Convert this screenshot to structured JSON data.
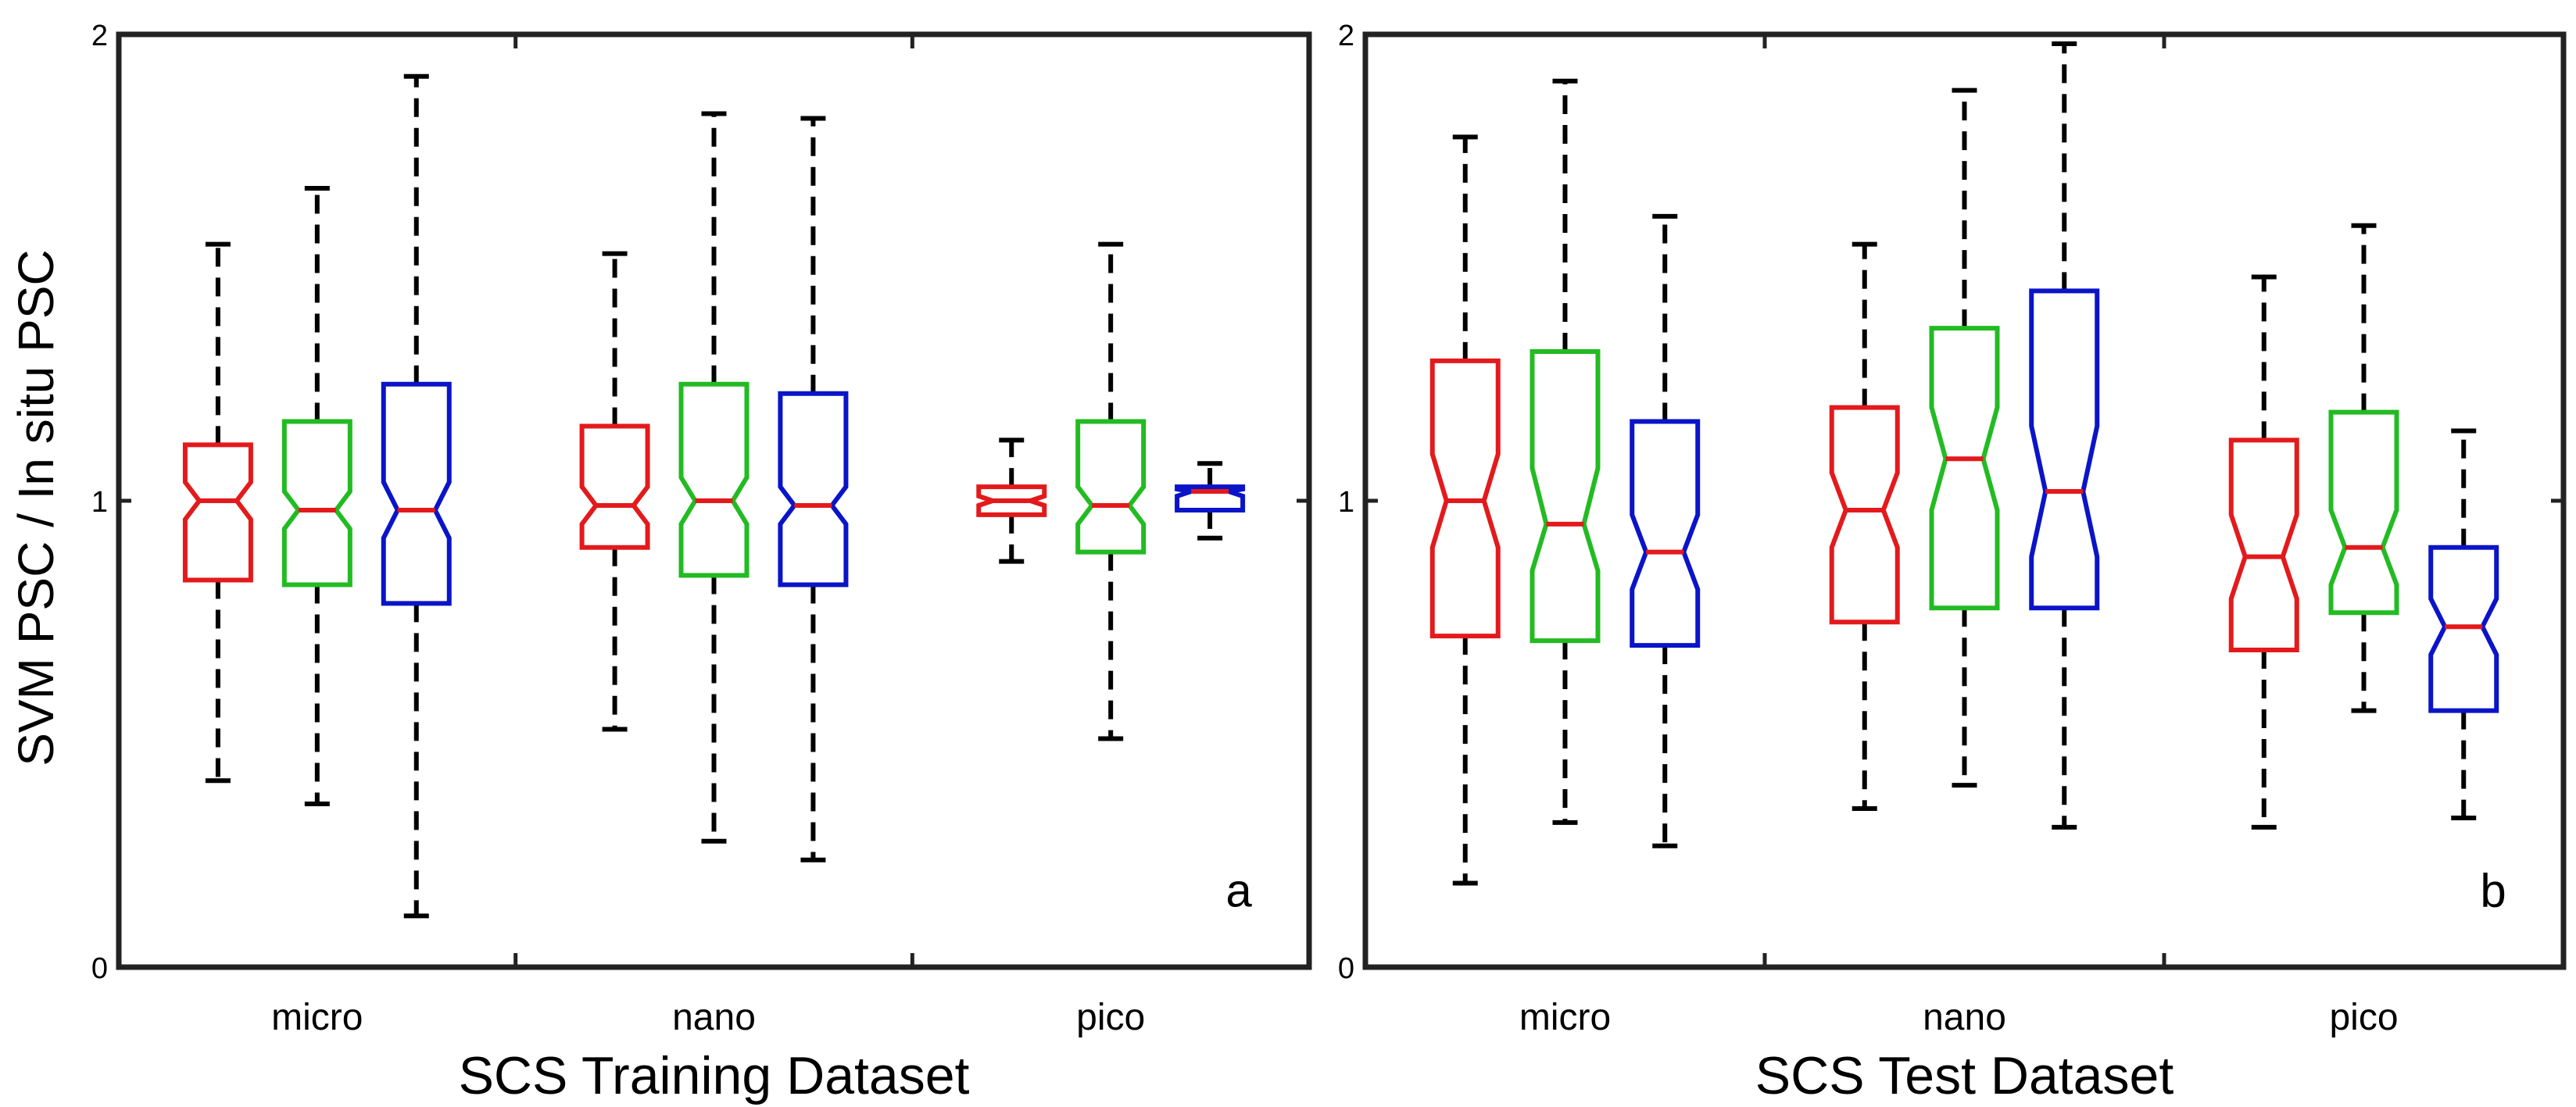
{
  "figure": {
    "ylabel": "SVM PSC / In situ PSC",
    "series_colors": [
      "#e31a1c",
      "#22bb22",
      "#0a14c8"
    ],
    "whisker_color": "#000000"
  },
  "chart_data": [
    {
      "type": "boxplot",
      "panel_label": "a",
      "title": "",
      "xlabel": "SCS Training Dataset",
      "ylabel": "SVM PSC / In situ PSC",
      "ylim": [
        0,
        2
      ],
      "yticks": [
        0,
        1,
        2
      ],
      "ytick_labels": [
        "0",
        "1",
        "2"
      ],
      "categories": [
        "micro",
        "nano",
        "pico"
      ],
      "notched": true,
      "groups": [
        {
          "category": "micro",
          "boxes": [
            {
              "color": "#e31a1c",
              "whisker_low": 0.4,
              "q1": 0.83,
              "median": 1.0,
              "q3": 1.12,
              "whisker_high": 1.55,
              "notch_low": 0.96,
              "notch_high": 1.04
            },
            {
              "color": "#22bb22",
              "whisker_low": 0.35,
              "q1": 0.82,
              "median": 0.98,
              "q3": 1.17,
              "whisker_high": 1.67,
              "notch_low": 0.94,
              "notch_high": 1.02
            },
            {
              "color": "#0a14c8",
              "whisker_low": 0.11,
              "q1": 0.78,
              "median": 0.98,
              "q3": 1.25,
              "whisker_high": 1.91,
              "notch_low": 0.92,
              "notch_high": 1.04
            }
          ]
        },
        {
          "category": "nano",
          "boxes": [
            {
              "color": "#e31a1c",
              "whisker_low": 0.51,
              "q1": 0.9,
              "median": 0.99,
              "q3": 1.16,
              "whisker_high": 1.53,
              "notch_low": 0.95,
              "notch_high": 1.03
            },
            {
              "color": "#22bb22",
              "whisker_low": 0.27,
              "q1": 0.84,
              "median": 1.0,
              "q3": 1.25,
              "whisker_high": 1.83,
              "notch_low": 0.95,
              "notch_high": 1.05
            },
            {
              "color": "#0a14c8",
              "whisker_low": 0.23,
              "q1": 0.82,
              "median": 0.99,
              "q3": 1.23,
              "whisker_high": 1.82,
              "notch_low": 0.95,
              "notch_high": 1.03
            }
          ]
        },
        {
          "category": "pico",
          "boxes": [
            {
              "color": "#e31a1c",
              "whisker_low": 0.87,
              "q1": 0.97,
              "median": 1.0,
              "q3": 1.03,
              "whisker_high": 1.13,
              "notch_low": 0.99,
              "notch_high": 1.01
            },
            {
              "color": "#22bb22",
              "whisker_low": 0.49,
              "q1": 0.89,
              "median": 0.99,
              "q3": 1.17,
              "whisker_high": 1.55,
              "notch_low": 0.95,
              "notch_high": 1.03
            },
            {
              "color": "#0a14c8",
              "whisker_low": 0.92,
              "q1": 0.98,
              "median": 1.02,
              "q3": 1.03,
              "whisker_high": 1.08,
              "notch_low": 1.01,
              "notch_high": 1.025
            }
          ]
        }
      ]
    },
    {
      "type": "boxplot",
      "panel_label": "b",
      "title": "",
      "xlabel": "SCS Test Dataset",
      "ylabel": "",
      "ylim": [
        0,
        2
      ],
      "yticks": [
        0,
        1,
        2
      ],
      "ytick_labels": [
        "0",
        "1",
        "2"
      ],
      "categories": [
        "micro",
        "nano",
        "pico"
      ],
      "notched": true,
      "groups": [
        {
          "category": "micro",
          "boxes": [
            {
              "color": "#e31a1c",
              "whisker_low": 0.18,
              "q1": 0.71,
              "median": 1.0,
              "q3": 1.3,
              "whisker_high": 1.78,
              "notch_low": 0.9,
              "notch_high": 1.1
            },
            {
              "color": "#22bb22",
              "whisker_low": 0.31,
              "q1": 0.7,
              "median": 0.95,
              "q3": 1.32,
              "whisker_high": 1.9,
              "notch_low": 0.85,
              "notch_high": 1.07
            },
            {
              "color": "#0a14c8",
              "whisker_low": 0.26,
              "q1": 0.69,
              "median": 0.89,
              "q3": 1.17,
              "whisker_high": 1.61,
              "notch_low": 0.81,
              "notch_high": 0.97
            }
          ]
        },
        {
          "category": "nano",
          "boxes": [
            {
              "color": "#e31a1c",
              "whisker_low": 0.34,
              "q1": 0.74,
              "median": 0.98,
              "q3": 1.2,
              "whisker_high": 1.55,
              "notch_low": 0.9,
              "notch_high": 1.06
            },
            {
              "color": "#22bb22",
              "whisker_low": 0.39,
              "q1": 0.77,
              "median": 1.09,
              "q3": 1.37,
              "whisker_high": 1.88,
              "notch_low": 0.98,
              "notch_high": 1.2
            },
            {
              "color": "#0a14c8",
              "whisker_low": 0.3,
              "q1": 0.77,
              "median": 1.02,
              "q3": 1.45,
              "whisker_high": 1.98,
              "notch_low": 0.88,
              "notch_high": 1.16
            }
          ]
        },
        {
          "category": "pico",
          "boxes": [
            {
              "color": "#e31a1c",
              "whisker_low": 0.3,
              "q1": 0.68,
              "median": 0.88,
              "q3": 1.13,
              "whisker_high": 1.48,
              "notch_low": 0.79,
              "notch_high": 0.97
            },
            {
              "color": "#22bb22",
              "whisker_low": 0.55,
              "q1": 0.76,
              "median": 0.9,
              "q3": 1.19,
              "whisker_high": 1.59,
              "notch_low": 0.82,
              "notch_high": 0.98
            },
            {
              "color": "#0a14c8",
              "whisker_low": 0.32,
              "q1": 0.55,
              "median": 0.73,
              "q3": 0.9,
              "whisker_high": 1.15,
              "notch_low": 0.67,
              "notch_high": 0.79
            }
          ]
        }
      ]
    }
  ]
}
